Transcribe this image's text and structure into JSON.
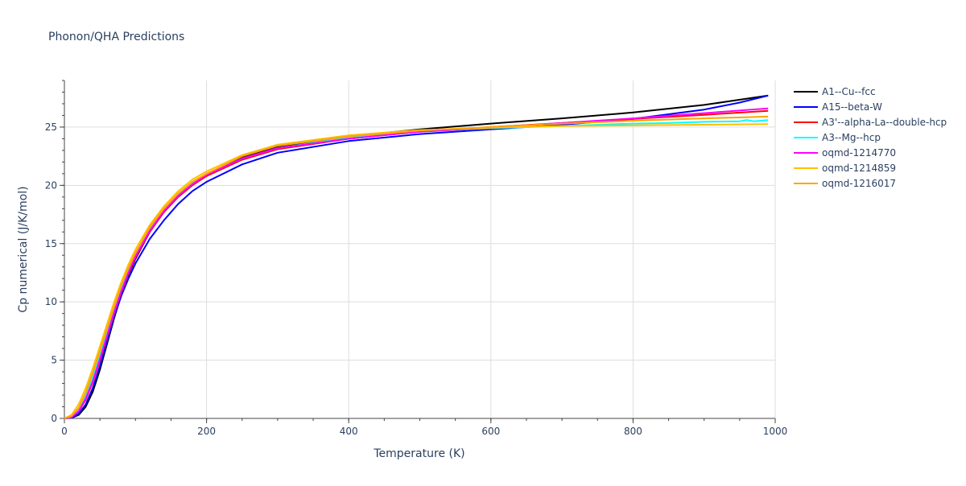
{
  "chart_data": {
    "type": "line",
    "title": "Phonon/QHA Predictions",
    "xlabel": "Temperature (K)",
    "ylabel": "Cp numerical (J/K/mol)",
    "xlim": [
      0,
      1000
    ],
    "ylim": [
      0,
      29
    ],
    "xticks": [
      0,
      200,
      400,
      600,
      800,
      1000
    ],
    "yticks": [
      0,
      5,
      10,
      15,
      20,
      25
    ],
    "grid": true,
    "legend_position": "top-right",
    "series": [
      {
        "name": "A1--Cu--fcc",
        "color": "#000000",
        "x": [
          0,
          10,
          20,
          30,
          40,
          50,
          60,
          70,
          80,
          90,
          100,
          120,
          140,
          160,
          180,
          200,
          250,
          300,
          400,
          500,
          600,
          700,
          800,
          900,
          990
        ],
        "y": [
          0,
          0.05,
          0.3,
          1.0,
          2.3,
          4.2,
          6.4,
          8.6,
          10.6,
          12.3,
          13.7,
          16.0,
          17.8,
          19.2,
          20.2,
          21.0,
          22.4,
          23.3,
          24.2,
          24.8,
          25.3,
          25.75,
          26.25,
          26.9,
          27.7
        ]
      },
      {
        "name": "A15--beta-W",
        "color": "#0000ff",
        "x": [
          0,
          10,
          20,
          30,
          40,
          50,
          60,
          70,
          80,
          90,
          100,
          120,
          140,
          160,
          180,
          200,
          250,
          300,
          400,
          500,
          600,
          700,
          800,
          900,
          950,
          990
        ],
        "y": [
          0,
          0.05,
          0.4,
          1.2,
          2.6,
          4.5,
          6.6,
          8.7,
          10.5,
          12.0,
          13.3,
          15.4,
          17.0,
          18.4,
          19.5,
          20.3,
          21.8,
          22.8,
          23.8,
          24.4,
          24.8,
          25.2,
          25.7,
          26.5,
          27.1,
          27.7
        ]
      },
      {
        "name": "A3'--alpha-La--double-hcp",
        "color": "#ff0000",
        "x": [
          0,
          10,
          20,
          30,
          40,
          50,
          60,
          70,
          80,
          90,
          100,
          120,
          140,
          160,
          180,
          200,
          250,
          300,
          400,
          500,
          600,
          700,
          800,
          900,
          990
        ],
        "y": [
          0,
          0.1,
          0.6,
          1.6,
          3.1,
          5.0,
          7.0,
          9.0,
          10.8,
          12.4,
          13.8,
          16.0,
          17.7,
          19.0,
          20.0,
          20.8,
          22.2,
          23.1,
          24.0,
          24.6,
          25.0,
          25.35,
          25.7,
          26.05,
          26.4
        ]
      },
      {
        "name": "A3--Mg--hcp",
        "color": "#00ffff",
        "x": [
          0,
          10,
          20,
          30,
          40,
          50,
          60,
          70,
          80,
          90,
          100,
          120,
          140,
          160,
          180,
          200,
          250,
          300,
          400,
          500,
          600,
          700,
          800,
          850,
          900,
          950,
          960,
          970,
          990
        ],
        "y": [
          0,
          0.1,
          0.7,
          1.9,
          3.5,
          5.4,
          7.4,
          9.4,
          11.2,
          12.8,
          14.1,
          16.3,
          17.9,
          19.2,
          20.2,
          20.9,
          22.3,
          23.2,
          24.1,
          24.6,
          24.9,
          25.1,
          25.3,
          25.35,
          25.45,
          25.5,
          25.6,
          25.5,
          25.6
        ]
      },
      {
        "name": "oqmd-1214770",
        "color": "#ff00ff",
        "x": [
          0,
          10,
          20,
          30,
          40,
          50,
          60,
          70,
          80,
          90,
          100,
          120,
          140,
          160,
          180,
          200,
          250,
          300,
          400,
          500,
          600,
          700,
          800,
          900,
          990
        ],
        "y": [
          0,
          0.1,
          0.6,
          1.7,
          3.2,
          5.1,
          7.1,
          9.1,
          10.9,
          12.5,
          13.9,
          16.1,
          17.8,
          19.1,
          20.1,
          20.9,
          22.3,
          23.2,
          24.0,
          24.6,
          24.95,
          25.35,
          25.75,
          26.2,
          26.6
        ]
      },
      {
        "name": "oqmd-1214859",
        "color": "#ffc000",
        "x": [
          0,
          10,
          20,
          30,
          40,
          50,
          60,
          70,
          80,
          90,
          100,
          120,
          140,
          160,
          180,
          200,
          250,
          300,
          400,
          500,
          600,
          700,
          800,
          900,
          990
        ],
        "y": [
          0,
          0.3,
          1.2,
          2.6,
          4.3,
          6.2,
          8.1,
          10.0,
          11.7,
          13.2,
          14.5,
          16.6,
          18.2,
          19.5,
          20.5,
          21.2,
          22.6,
          23.5,
          24.3,
          24.75,
          24.95,
          25.1,
          25.15,
          25.2,
          25.25
        ]
      },
      {
        "name": "oqmd-1216017",
        "color": "#ffa500",
        "x": [
          0,
          10,
          20,
          30,
          40,
          50,
          60,
          70,
          80,
          90,
          100,
          120,
          140,
          160,
          180,
          200,
          250,
          300,
          400,
          500,
          600,
          700,
          800,
          900,
          990
        ],
        "y": [
          0,
          0.2,
          0.9,
          2.2,
          3.9,
          5.8,
          7.7,
          9.6,
          11.4,
          12.9,
          14.2,
          16.4,
          18.0,
          19.3,
          20.3,
          21.0,
          22.5,
          23.4,
          24.2,
          24.7,
          25.0,
          25.3,
          25.55,
          25.75,
          25.9
        ]
      }
    ]
  }
}
